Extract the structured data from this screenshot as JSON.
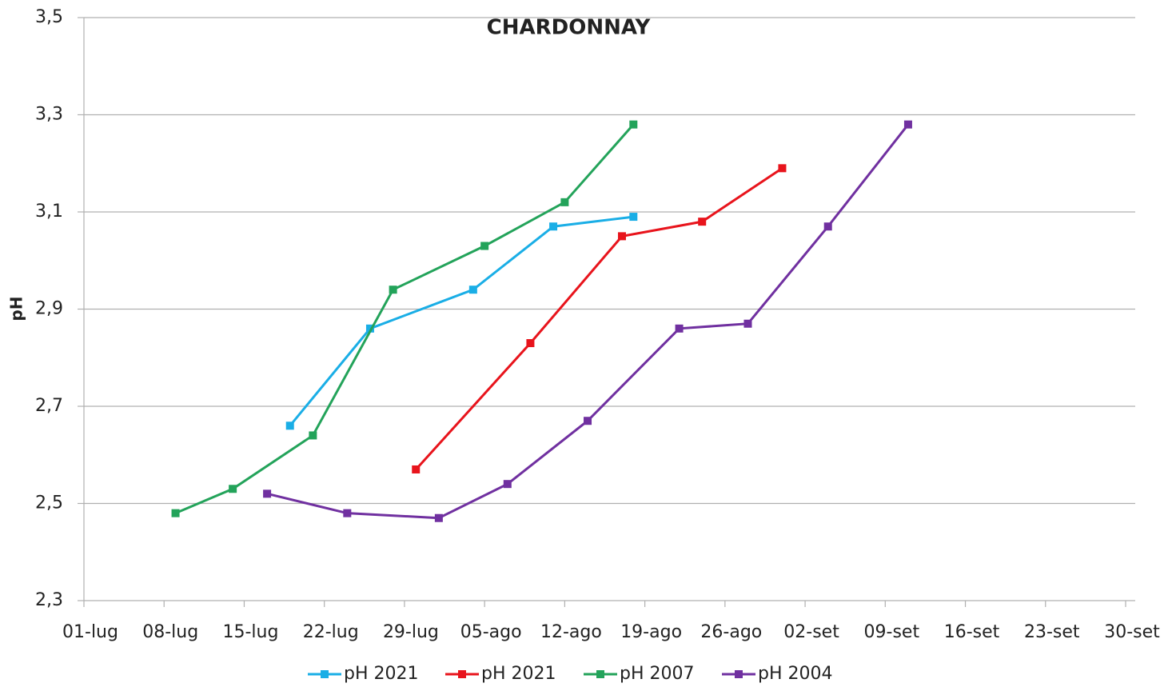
{
  "chart_data": {
    "type": "line",
    "title": "CHARDONNAY",
    "y_label": "pH",
    "xlim": [
      182,
      273
    ],
    "xticks": [
      {
        "value": 182,
        "label": "01-lug"
      },
      {
        "value": 189,
        "label": "08-lug"
      },
      {
        "value": 196,
        "label": "15-lug"
      },
      {
        "value": 203,
        "label": "22-lug"
      },
      {
        "value": 210,
        "label": "29-lug"
      },
      {
        "value": 217,
        "label": "05-ago"
      },
      {
        "value": 224,
        "label": "12-ago"
      },
      {
        "value": 231,
        "label": "19-ago"
      },
      {
        "value": 238,
        "label": "26-ago"
      },
      {
        "value": 245,
        "label": "02-set"
      },
      {
        "value": 252,
        "label": "09-set"
      },
      {
        "value": 259,
        "label": "16-set"
      },
      {
        "value": 266,
        "label": "23-set"
      },
      {
        "value": 273,
        "label": "30-set"
      }
    ],
    "ylim": [
      2.3,
      3.5
    ],
    "yticks": [
      {
        "value": 2.3,
        "label": "2,3"
      },
      {
        "value": 2.5,
        "label": "2,5"
      },
      {
        "value": 2.7,
        "label": "2,7"
      },
      {
        "value": 2.9,
        "label": "2,9"
      },
      {
        "value": 3.1,
        "label": "3,1"
      },
      {
        "value": 3.3,
        "label": "3,3"
      },
      {
        "value": 3.5,
        "label": "3,5"
      }
    ],
    "grid": true,
    "legend": "bottom",
    "series": [
      {
        "name": "pH 2021",
        "color": "#1aaee6",
        "x": [
          200,
          207,
          216,
          223,
          230
        ],
        "values": [
          2.66,
          2.86,
          2.94,
          3.07,
          3.09
        ]
      },
      {
        "name": "pH 2021",
        "color": "#e8141c",
        "x": [
          211,
          221,
          229,
          236,
          243
        ],
        "values": [
          2.57,
          2.83,
          3.05,
          3.08,
          3.19
        ]
      },
      {
        "name": "pH 2007",
        "color": "#23a35a",
        "x": [
          190,
          195,
          202,
          209,
          217,
          224,
          230
        ],
        "values": [
          2.48,
          2.53,
          2.64,
          2.94,
          3.03,
          3.12,
          3.28
        ]
      },
      {
        "name": "pH 2004",
        "color": "#7030a0",
        "x": [
          198,
          205,
          213,
          219,
          226,
          234,
          240,
          247,
          254
        ],
        "values": [
          2.52,
          2.48,
          2.47,
          2.54,
          2.67,
          2.86,
          2.87,
          3.07,
          3.28
        ]
      }
    ]
  }
}
